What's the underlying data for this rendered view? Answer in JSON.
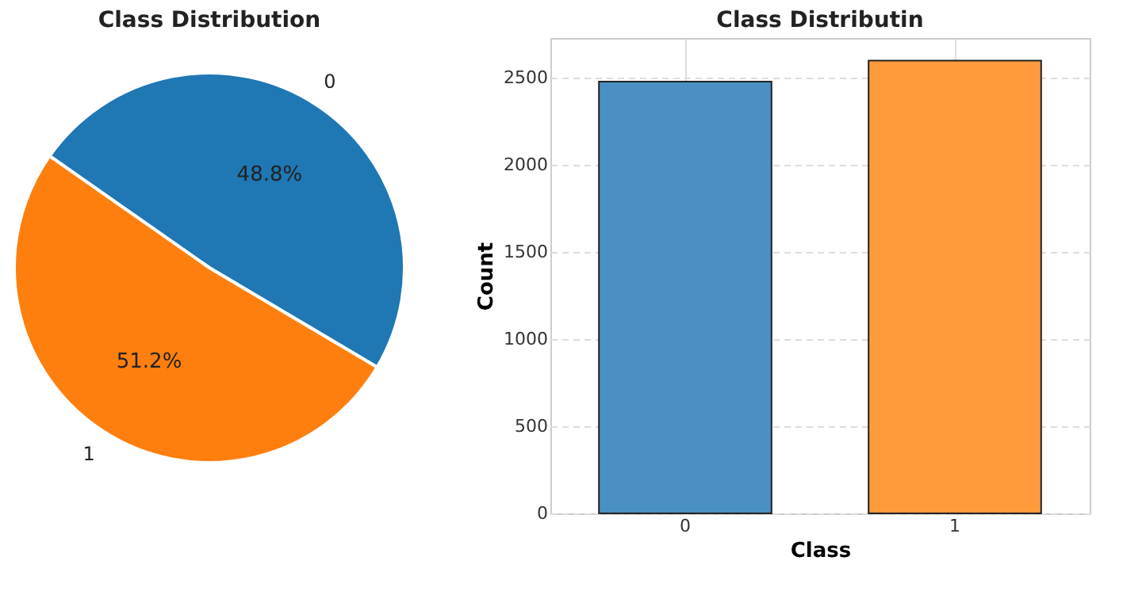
{
  "chart_data": [
    {
      "type": "pie",
      "title": "Class Distribution",
      "categories": [
        "0",
        "1"
      ],
      "values": [
        48.8,
        51.2
      ],
      "colors": [
        "#1f77b4",
        "#ff7f0e"
      ],
      "value_labels": [
        "48.8%",
        "51.2%"
      ]
    },
    {
      "type": "bar",
      "title": "Class Distributin",
      "xlabel": "Class",
      "ylabel": "Count",
      "categories": [
        "0",
        "1"
      ],
      "values": [
        2475,
        2595
      ],
      "colors": [
        "#4a90c2",
        "#ff9a3d"
      ],
      "ylim": [
        0,
        2725
      ],
      "yticks": [
        0,
        500,
        1000,
        1500,
        2000,
        2500
      ],
      "grid": true
    }
  ]
}
